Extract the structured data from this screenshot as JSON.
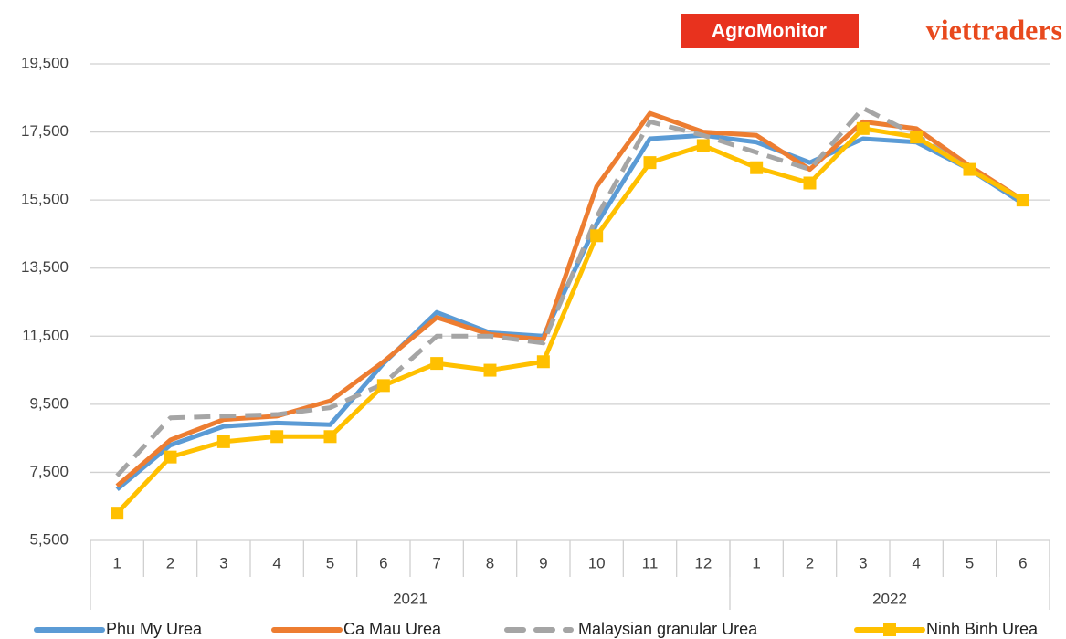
{
  "logos": {
    "left": "AgroMonitor",
    "right": "viettraders"
  },
  "chart_data": {
    "type": "line",
    "categories": [
      "1",
      "2",
      "3",
      "4",
      "5",
      "6",
      "7",
      "8",
      "9",
      "10",
      "11",
      "12",
      "1",
      "2",
      "3",
      "4",
      "5",
      "6"
    ],
    "groups": [
      {
        "label": "2021",
        "count": 12
      },
      {
        "label": "2022",
        "count": 6
      }
    ],
    "ylim": [
      5500,
      19500
    ],
    "yticks": [
      {
        "value": 5500,
        "label": "5,500"
      },
      {
        "value": 7500,
        "label": "7,500"
      },
      {
        "value": 9500,
        "label": "9,500"
      },
      {
        "value": 11500,
        "label": "11,500"
      },
      {
        "value": 13500,
        "label": "13,500"
      },
      {
        "value": 15500,
        "label": "15,500"
      },
      {
        "value": 17500,
        "label": "17,500"
      },
      {
        "value": 19500,
        "label": "19,500"
      }
    ],
    "grid": true,
    "legend": "bottom",
    "series": [
      {
        "name": "Phu My Urea",
        "color": "#5b9bd5",
        "style": "solid",
        "values": [
          7000,
          8300,
          8850,
          8950,
          8900,
          10700,
          12200,
          11600,
          11500,
          14800,
          17300,
          17400,
          17200,
          16600,
          17300,
          17200,
          16400,
          15400
        ]
      },
      {
        "name": "Ca Mau Urea",
        "color": "#ed7d31",
        "style": "solid",
        "values": [
          7100,
          8450,
          9050,
          9150,
          9600,
          10750,
          12050,
          11550,
          11400,
          15900,
          18050,
          17500,
          17400,
          16400,
          17800,
          17600,
          16500,
          15500
        ]
      },
      {
        "name": "Malaysian granular Urea",
        "color": "#a5a5a5",
        "style": "dashed",
        "values": [
          7400,
          9100,
          9150,
          9200,
          9400,
          10100,
          11500,
          11500,
          11300,
          15000,
          17800,
          17400,
          16900,
          16400,
          18200,
          17400,
          16400,
          15500
        ]
      },
      {
        "name": "Ninh Binh Urea",
        "color": "#ffc000",
        "style": "solid",
        "marker": "square",
        "values": [
          6300,
          7950,
          8400,
          8550,
          8550,
          10050,
          10700,
          10500,
          10750,
          14450,
          16600,
          17100,
          16450,
          16000,
          17600,
          17350,
          16400,
          15500
        ]
      }
    ]
  }
}
